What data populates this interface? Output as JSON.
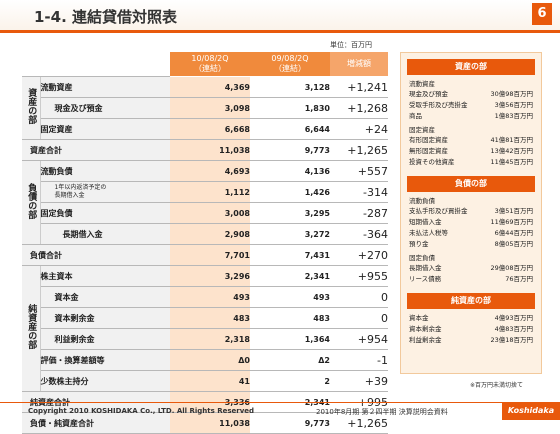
{
  "header": {
    "title": "1-4. 連結貸借対照表",
    "page_number": "6"
  },
  "unit_note": "単位：百万円",
  "columns": {
    "current": "10/08/2Q\n（連結）",
    "previous": "09/08/2Q\n（連結）",
    "increase": "増減額"
  },
  "sections": {
    "assets": "資産の部",
    "liabilities": "負債の部",
    "net_assets": "純資産の部"
  },
  "rows": [
    {
      "label": "流動資産",
      "current": "4,369",
      "previous": "3,128",
      "increase": "+1,241"
    },
    {
      "label": "現金及び預金",
      "current": "3,098",
      "previous": "1,830",
      "increase": "+1,268"
    },
    {
      "label": "固定資産",
      "current": "6,668",
      "previous": "6,644",
      "increase": "+24"
    },
    {
      "label": "資産合計",
      "current": "11,038",
      "previous": "9,773",
      "increase": "+1,265"
    },
    {
      "label": "流動負債",
      "current": "4,693",
      "previous": "4,136",
      "increase": "+557"
    },
    {
      "label": "1年以内返済予定の\n長期借入金",
      "current": "1,112",
      "previous": "1,426",
      "increase": "-314"
    },
    {
      "label": "固定負債",
      "current": "3,008",
      "previous": "3,295",
      "increase": "-287"
    },
    {
      "label": "長期借入金",
      "current": "2,908",
      "previous": "3,272",
      "increase": "-364"
    },
    {
      "label": "負債合計",
      "current": "7,701",
      "previous": "7,431",
      "increase": "+270"
    },
    {
      "label": "株主資本",
      "current": "3,296",
      "previous": "2,341",
      "increase": "+955"
    },
    {
      "label": "資本金",
      "current": "493",
      "previous": "493",
      "increase": "0"
    },
    {
      "label": "資本剰余金",
      "current": "483",
      "previous": "483",
      "increase": "0"
    },
    {
      "label": "利益剰余金",
      "current": "2,318",
      "previous": "1,364",
      "increase": "+954"
    },
    {
      "label": "評価・換算差額等",
      "current": "Δ0",
      "previous": "Δ2",
      "increase": "-1"
    },
    {
      "label": "少数株主持分",
      "current": "41",
      "previous": "2",
      "increase": "+39"
    },
    {
      "label": "純資産合計",
      "current": "3,336",
      "previous": "2,341",
      "increase": "+995"
    },
    {
      "label": "負債・純資産合計",
      "current": "11,038",
      "previous": "9,773",
      "increase": "+1,265"
    }
  ],
  "right_panel": {
    "assets": {
      "header": "資産の部",
      "cat1": "流動資産",
      "items1": [
        {
          "name": "現金及び預金",
          "value": "30億98百万円"
        },
        {
          "name": "受取手形及び売掛金",
          "value": "3億56百万円"
        },
        {
          "name": "商品",
          "value": "1億83百万円"
        }
      ],
      "cat2": "固定資産",
      "items2": [
        {
          "name": "有形固定資産",
          "value": "41億81百万円"
        },
        {
          "name": "無形固定資産",
          "value": "13億42百万円"
        },
        {
          "name": "投資その他資産",
          "value": "11億45百万円"
        }
      ]
    },
    "liabilities": {
      "header": "負債の部",
      "cat1": "流動負債",
      "items1": [
        {
          "name": "支払手形及び買掛金",
          "value": "3億51百万円"
        },
        {
          "name": "短期借入金",
          "value": "11億69百万円"
        },
        {
          "name": "未払法人税等",
          "value": "6億44百万円"
        },
        {
          "name": "預り金",
          "value": "8億05百万円"
        }
      ],
      "cat2": "固定負債",
      "items2": [
        {
          "name": "長期借入金",
          "value": "29億08百万円"
        },
        {
          "name": "リース債務",
          "value": "76百万円"
        }
      ]
    },
    "net_assets": {
      "header": "純資産の部",
      "items": [
        {
          "name": "資本金",
          "value": "4億93百万円"
        },
        {
          "name": "資本剰余金",
          "value": "4億83百万円"
        },
        {
          "name": "利益剰余金",
          "value": "23億18百万円"
        }
      ]
    }
  },
  "footnote": "※百万円未満切捨て",
  "footer": {
    "copyright": "Copyright 2010 KOSHIDAKA Co., LTD. All Rights Reserved",
    "document": "2010年8月期 第２四半期 決算説明会資料",
    "logo": "Koshidaka"
  }
}
